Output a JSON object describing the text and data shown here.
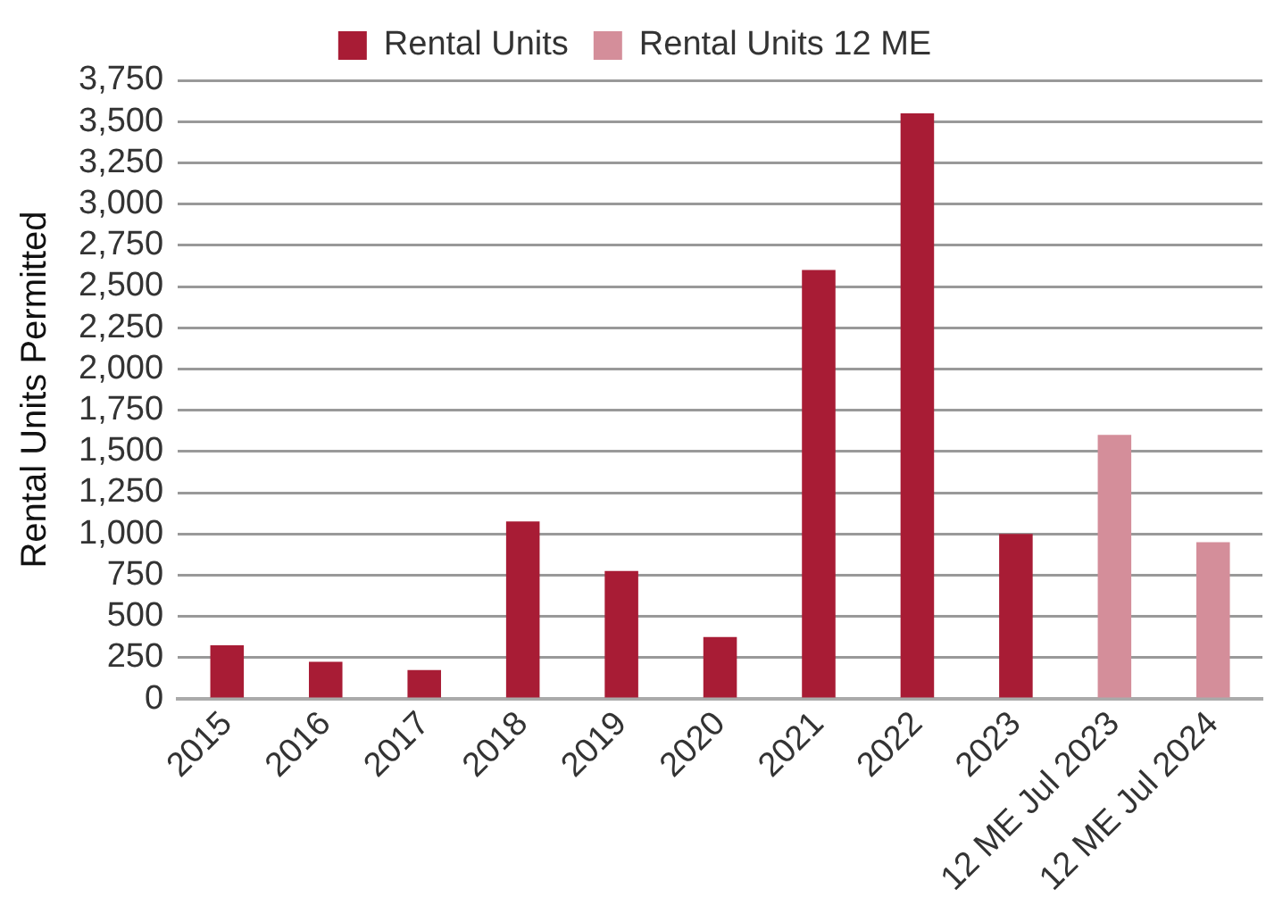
{
  "chart_data": {
    "type": "bar",
    "ylabel": "Rental Units Permitted",
    "categories": [
      "2015",
      "2016",
      "2017",
      "2018",
      "2019",
      "2020",
      "2021",
      "2022",
      "2023",
      "12 ME Jul 2023",
      "12 ME Jul 2024"
    ],
    "series": [
      {
        "name": "Rental Units",
        "color": "#a81c35",
        "values": [
          325,
          225,
          175,
          1075,
          775,
          375,
          2600,
          3550,
          1000,
          null,
          null
        ]
      },
      {
        "name": "Rental Units 12 ME",
        "color": "#d48e9a",
        "values": [
          null,
          null,
          null,
          null,
          null,
          null,
          null,
          null,
          null,
          1600,
          950
        ]
      }
    ],
    "ylim": [
      0,
      3750
    ],
    "yticks": [
      0,
      250,
      500,
      750,
      {
        "value": 1000,
        "label": "1,000"
      },
      {
        "value": 1250,
        "label": "1,250"
      },
      {
        "value": 1500,
        "label": "1,500"
      },
      {
        "value": 1750,
        "label": "1,750"
      },
      {
        "value": 2000,
        "label": "2,000"
      },
      {
        "value": 2250,
        "label": "2,250"
      },
      {
        "value": 2500,
        "label": "2,500"
      },
      {
        "value": 2750,
        "label": "2,750"
      },
      {
        "value": 3000,
        "label": "3,000"
      },
      {
        "value": 3250,
        "label": "3,250"
      },
      {
        "value": 3500,
        "label": "3,500"
      },
      {
        "value": 3750,
        "label": "3,750"
      }
    ],
    "grid": "y",
    "legend": "top"
  }
}
